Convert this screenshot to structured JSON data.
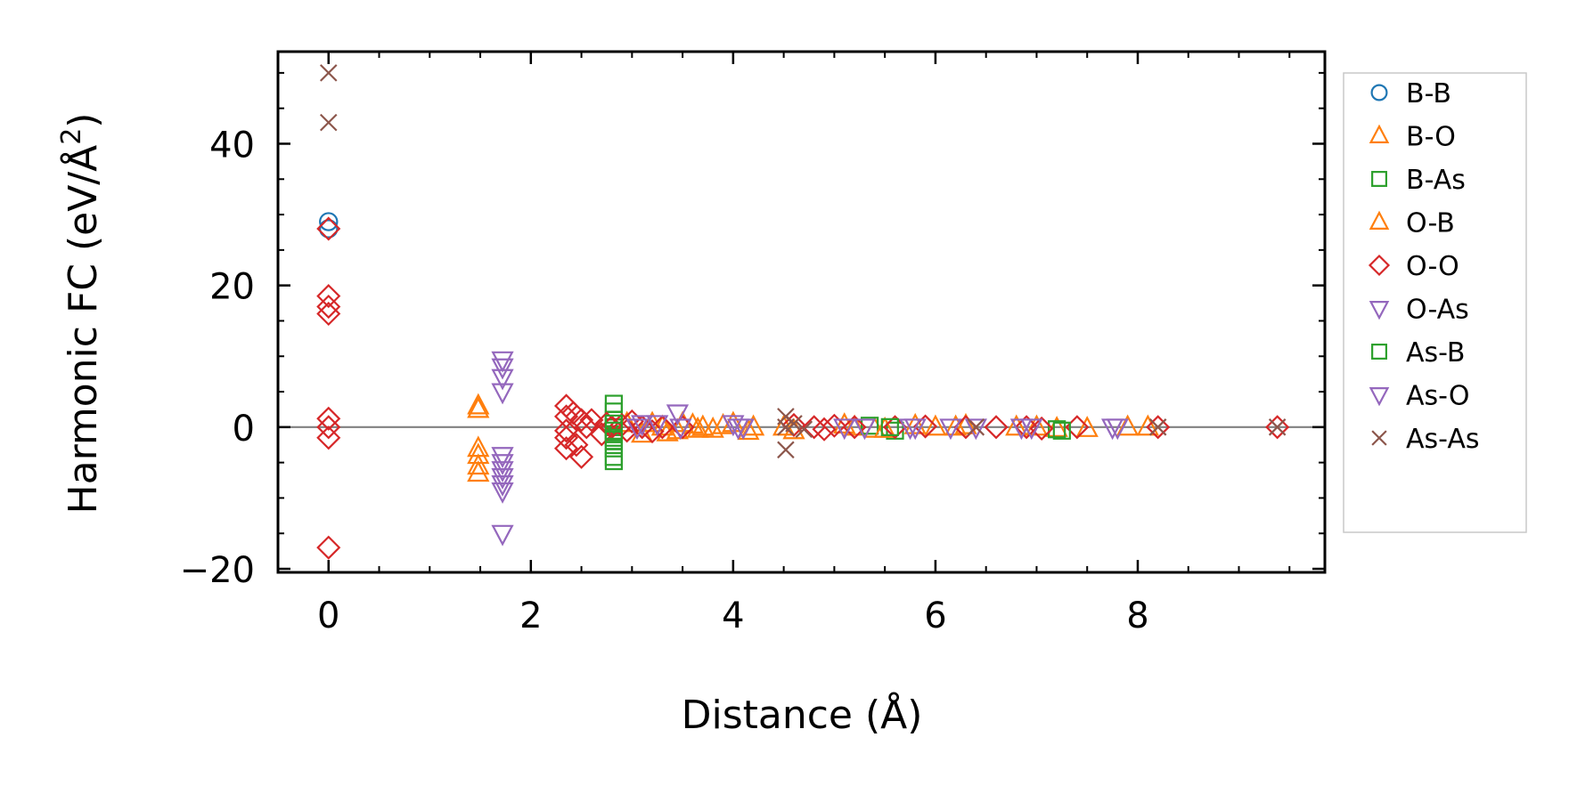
{
  "chart_data": {
    "type": "scatter",
    "xlabel": "Distance (Å)",
    "ylabel_main": "Harmonic FC (eV/Å",
    "ylabel_sup": "2",
    "ylabel_close": ")",
    "xlim": [
      -0.5,
      9.85
    ],
    "ylim": [
      -20.5,
      53
    ],
    "xticks": [
      0,
      2,
      4,
      6,
      8
    ],
    "xtick_labels": [
      "0",
      "2",
      "4",
      "6",
      "8"
    ],
    "yticks": [
      -20,
      0,
      20,
      40
    ],
    "ytick_labels": [
      "−20",
      "0",
      "20",
      "40"
    ],
    "x_minor_step": 0.5,
    "y_minor_step": 5,
    "zero_line": true,
    "grid": false,
    "legend_position": "outside-right",
    "series": [
      {
        "name": "B-B",
        "marker": "circle",
        "color": "#1f77b4",
        "x": [
          0,
          0
        ],
        "y": [
          29,
          28
        ]
      },
      {
        "name": "B-O",
        "marker": "triangle-up",
        "color": "#ff7f0e",
        "x": [
          1.48,
          1.48,
          1.48,
          1.48,
          1.48,
          1.48,
          3.2,
          3.3,
          3.45,
          3.6,
          3.7,
          3.8,
          4.0,
          4.2,
          4.6,
          5.2,
          5.4,
          5.8,
          6.2,
          6.8,
          7.2,
          7.9
        ],
        "y": [
          2.5,
          3.0,
          -3.0,
          -4.0,
          -5.5,
          -6.5,
          0.5,
          0,
          -0.5,
          0.3,
          0,
          -0.3,
          0.5,
          0,
          -0.5,
          0,
          -0.3,
          0.2,
          0,
          0,
          -0.2,
          0
        ]
      },
      {
        "name": "B-As",
        "marker": "square",
        "color": "#2ca02c",
        "x": [
          2.82,
          2.82,
          2.82,
          2.82,
          2.82,
          2.82,
          2.82,
          2.82,
          2.82,
          5.35,
          5.6,
          7.2
        ],
        "y": [
          3.3,
          2.2,
          1.0,
          0.0,
          -1.0,
          -2.0,
          -3.0,
          -4.2,
          -4.8,
          0.2,
          -0.5,
          -0.3
        ]
      },
      {
        "name": "O-B",
        "marker": "triangle-up",
        "color": "#ff7f0e",
        "x": [
          2.95,
          3.1,
          3.35,
          3.5,
          3.65,
          3.9,
          4.15,
          4.5,
          5.1,
          5.5,
          6.0,
          6.3,
          7.0,
          7.5,
          8.1
        ],
        "y": [
          0.5,
          -1.0,
          -0.8,
          0.5,
          -0.3,
          0.2,
          -0.6,
          0,
          0.3,
          -0.3,
          0,
          0.2,
          0,
          -0.2,
          0
        ]
      },
      {
        "name": "O-O",
        "marker": "diamond",
        "color": "#d62728",
        "x": [
          0,
          0,
          0,
          0,
          0,
          0,
          0,
          0,
          2.35,
          2.35,
          2.35,
          2.35,
          2.35,
          2.42,
          2.45,
          2.5,
          2.5,
          2.55,
          2.6,
          2.7,
          2.75,
          2.8,
          2.9,
          2.95,
          3.0,
          3.1,
          3.2,
          3.3,
          3.5,
          4.6,
          4.8,
          4.9,
          5.0,
          5.2,
          5.6,
          5.9,
          6.3,
          6.6,
          6.9,
          7.05,
          7.4,
          8.2,
          9.38
        ],
        "y": [
          28,
          18.5,
          17,
          16,
          1.2,
          0,
          -1.5,
          -17,
          3,
          1.5,
          -0.5,
          -1.5,
          -3,
          2.0,
          -2.5,
          1.0,
          -4.2,
          0,
          1.0,
          -1.0,
          0.5,
          0,
          0.3,
          -0.5,
          0.8,
          0,
          -0.6,
          0,
          0,
          0.3,
          0,
          -0.3,
          0.2,
          0,
          0,
          0.1,
          0,
          0,
          0,
          -0.2,
          0,
          0,
          0
        ]
      },
      {
        "name": "O-As",
        "marker": "triangle-down",
        "color": "#9467bd",
        "x": [
          1.72,
          1.72,
          1.72,
          1.72,
          1.72,
          1.72,
          1.72,
          1.72,
          1.72,
          3.1,
          3.45,
          4.05,
          5.3,
          5.8,
          6.15,
          6.85,
          7.75
        ],
        "y": [
          9.5,
          8.5,
          7,
          5,
          -4,
          -6,
          -7,
          -9,
          -15,
          0.5,
          2,
          0,
          0,
          0,
          0,
          0,
          0
        ]
      },
      {
        "name": "As-B",
        "marker": "square",
        "color": "#2ca02c",
        "x": [
          2.82,
          2.82,
          2.82,
          5.55,
          7.25
        ],
        "y": [
          0.5,
          -0.5,
          -1.5,
          0,
          -0.5
        ]
      },
      {
        "name": "As-O",
        "marker": "triangle-down",
        "color": "#9467bd",
        "x": [
          1.72,
          1.72,
          3.05,
          3.25,
          3.48,
          4.0,
          4.1,
          5.1,
          5.75,
          6.4,
          6.95,
          7.8
        ],
        "y": [
          -5,
          -8,
          0,
          0.5,
          0,
          0.5,
          0,
          0,
          0,
          0,
          0,
          0
        ]
      },
      {
        "name": "As-As",
        "marker": "x",
        "color": "#8c564b",
        "x": [
          0,
          0,
          4.52,
          4.52,
          4.52,
          4.6,
          4.7,
          6.4,
          8.2,
          9.38
        ],
        "y": [
          50,
          43,
          1.5,
          0,
          -3.2,
          0.5,
          -0.3,
          0,
          0,
          0
        ]
      }
    ]
  }
}
